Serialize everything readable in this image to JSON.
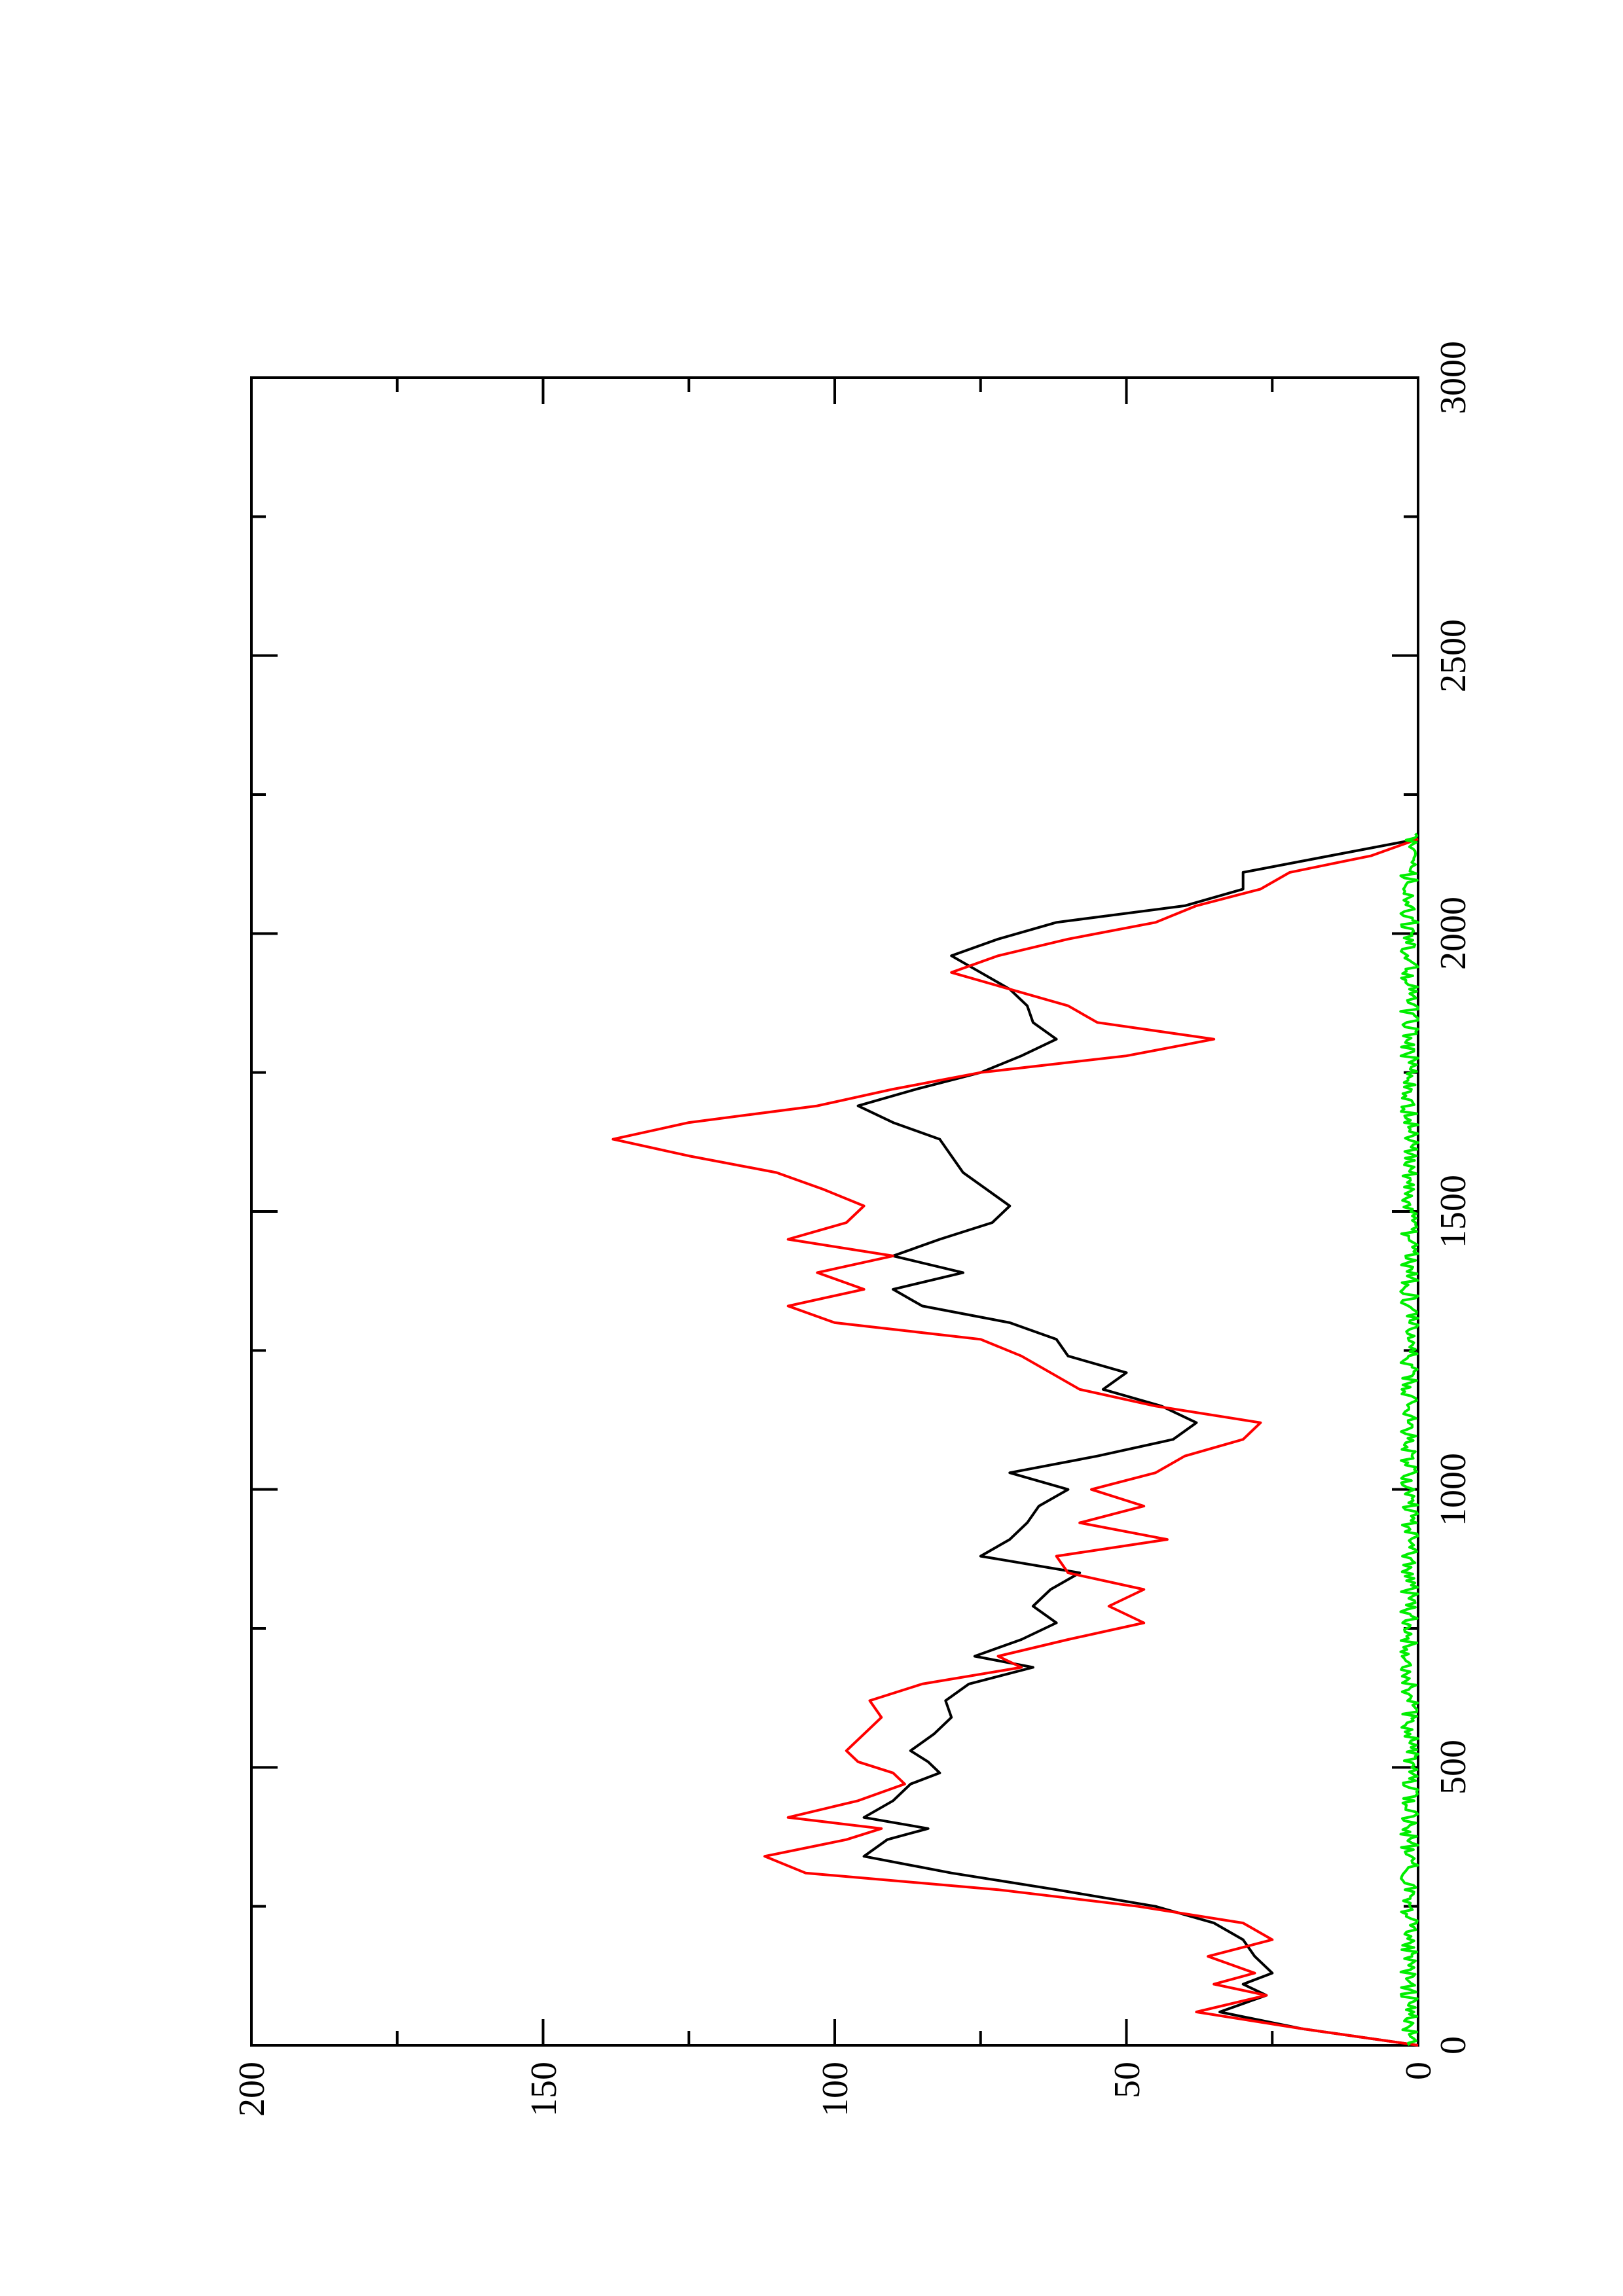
{
  "chart_data": {
    "type": "line",
    "orientation": "rotated-90-clockwise",
    "title": "",
    "xlabel": "",
    "ylabel": "",
    "xlim": [
      0,
      3000
    ],
    "ylim": [
      0,
      200
    ],
    "x_ticks": [
      "0",
      "500",
      "1000",
      "1500",
      "2000",
      "2500",
      "3000"
    ],
    "y_ticks": [
      "0",
      "50",
      "100",
      "150",
      "200"
    ],
    "grid": false,
    "legend": "none",
    "series": [
      {
        "color": "#000000",
        "x": [
          0,
          30,
          60,
          90,
          110,
          130,
          160,
          190,
          220,
          250,
          280,
          310,
          340,
          370,
          390,
          410,
          440,
          470,
          490,
          510,
          530,
          560,
          590,
          620,
          650,
          680,
          700,
          730,
          760,
          790,
          820,
          850,
          880,
          910,
          940,
          970,
          1000,
          1030,
          1060,
          1090,
          1120,
          1150,
          1180,
          1210,
          1240,
          1270,
          1300,
          1330,
          1360,
          1390,
          1420,
          1450,
          1480,
          1510,
          1540,
          1570,
          1600,
          1630,
          1660,
          1690,
          1720,
          1750,
          1780,
          1810,
          1840,
          1870,
          1900,
          1930,
          1960,
          1990,
          2020,
          2050,
          2080,
          2110,
          2140,
          2170
        ],
        "y": [
          0,
          20,
          34,
          26,
          30,
          25,
          28,
          30,
          35,
          45,
          62,
          80,
          95,
          91,
          84,
          95,
          90,
          87,
          82,
          84,
          87,
          83,
          80,
          81,
          77,
          66,
          76,
          68,
          62,
          66,
          63,
          58,
          75,
          70,
          67,
          65,
          60,
          70,
          55,
          42,
          38,
          44,
          54,
          50,
          60,
          62,
          70,
          85,
          90,
          78,
          90,
          82,
          73,
          70,
          74,
          78,
          80,
          82,
          90,
          96,
          86,
          75,
          68,
          62,
          66,
          67,
          70,
          75,
          80,
          72,
          62,
          40,
          30,
          30,
          15,
          0
        ]
      },
      {
        "color": "#ff0000",
        "x": [
          0,
          30,
          60,
          90,
          110,
          130,
          160,
          190,
          220,
          250,
          280,
          310,
          340,
          370,
          390,
          410,
          440,
          470,
          490,
          510,
          530,
          560,
          590,
          620,
          650,
          680,
          700,
          730,
          760,
          790,
          820,
          850,
          880,
          910,
          940,
          970,
          1000,
          1030,
          1060,
          1090,
          1120,
          1150,
          1180,
          1210,
          1240,
          1270,
          1300,
          1330,
          1360,
          1390,
          1420,
          1450,
          1480,
          1510,
          1540,
          1570,
          1600,
          1630,
          1660,
          1690,
          1720,
          1750,
          1780,
          1810,
          1840,
          1870,
          1900,
          1930,
          1960,
          1990,
          2020,
          2050,
          2080,
          2110,
          2140,
          2170
        ],
        "y": [
          0,
          20,
          38,
          26,
          35,
          28,
          36,
          25,
          30,
          48,
          72,
          105,
          112,
          98,
          92,
          108,
          96,
          88,
          90,
          96,
          98,
          95,
          92,
          94,
          85,
          68,
          72,
          60,
          47,
          53,
          47,
          60,
          62,
          43,
          58,
          47,
          56,
          45,
          40,
          30,
          27,
          45,
          58,
          63,
          68,
          75,
          100,
          108,
          95,
          103,
          90,
          108,
          98,
          95,
          102,
          110,
          125,
          138,
          125,
          103,
          90,
          75,
          50,
          35,
          55,
          60,
          70,
          80,
          72,
          60,
          45,
          38,
          27,
          22,
          8,
          0
        ]
      },
      {
        "color": "#00ee00",
        "x_range": [
          0,
          2180
        ],
        "y_band": [
          0,
          3
        ]
      }
    ]
  }
}
